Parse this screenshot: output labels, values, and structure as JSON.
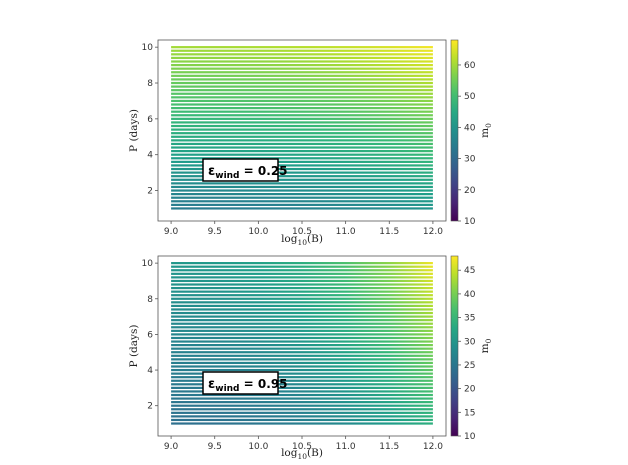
{
  "chart_data": [
    {
      "type": "heatmap",
      "panel": "top",
      "xlabel": "log10(B)",
      "ylabel": "P (days)",
      "colorbar_label": "m0",
      "colormap": "viridis",
      "xlim": [
        8.85,
        12.15
      ],
      "ylim": [
        0.3,
        10.4
      ],
      "xticks": [
        "9.0",
        "9.5",
        "10.0",
        "10.5",
        "11.0",
        "11.5",
        "12.0"
      ],
      "yticks": [
        "2",
        "4",
        "6",
        "8",
        "10"
      ],
      "clim": [
        10,
        68
      ],
      "colorbar_ticks": [
        "10",
        "20",
        "30",
        "40",
        "50",
        "60"
      ],
      "x_range": [
        9.0,
        12.0
      ],
      "p_range": [
        1.0,
        10.0
      ],
      "row_count": 46,
      "value_corners": {
        "low_B_low_P": 34,
        "high_B_low_P": 40,
        "low_B_high_P": 60,
        "high_B_high_P": 67
      },
      "annotation": {
        "symbol": "ε",
        "subscript": "wind",
        "value": " = 0.25"
      },
      "grid": false
    },
    {
      "type": "heatmap",
      "panel": "bottom",
      "xlabel": "log10(B)",
      "ylabel": "P (days)",
      "colorbar_label": "m0",
      "colormap": "viridis",
      "xlim": [
        8.85,
        12.15
      ],
      "ylim": [
        0.3,
        10.4
      ],
      "xticks": [
        "9.0",
        "9.5",
        "10.0",
        "10.5",
        "11.0",
        "11.5",
        "12.0"
      ],
      "yticks": [
        "2",
        "4",
        "6",
        "8",
        "10"
      ],
      "clim": [
        10,
        48
      ],
      "colorbar_ticks": [
        "10",
        "15",
        "20",
        "25",
        "30",
        "35",
        "40",
        "45"
      ],
      "x_range": [
        9.0,
        12.0
      ],
      "p_range": [
        1.0,
        10.0
      ],
      "row_count": 46,
      "value_corners": {
        "low_B_low_P": 24,
        "high_B_low_P": 34,
        "low_B_high_P": 30,
        "high_B_high_P": 47
      },
      "annotation": {
        "symbol": "ε",
        "subscript": "wind",
        "value": " = 0.95"
      },
      "grid": false
    }
  ]
}
